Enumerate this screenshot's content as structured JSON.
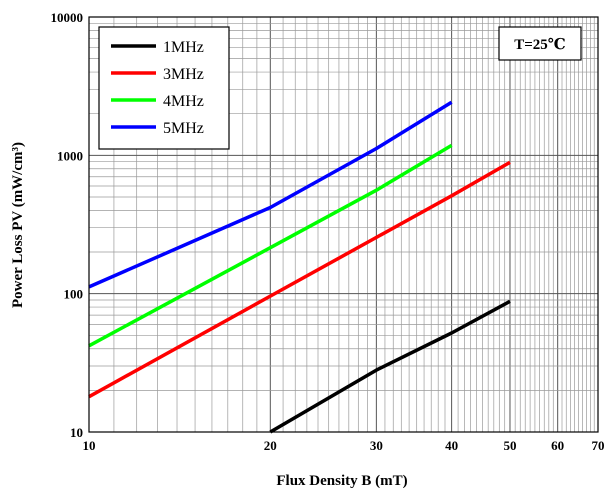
{
  "chart_data": {
    "type": "line",
    "xlabel": "Flux Density B (mT)",
    "ylabel": "Power Loss PV (mW/cm³)",
    "x_scale": "log",
    "y_scale": "log",
    "xlim": [
      10,
      70
    ],
    "ylim": [
      10,
      10000
    ],
    "x_ticks": [
      10,
      20,
      30,
      40,
      50,
      60,
      70
    ],
    "x_tick_labels": [
      "10",
      "20",
      "30",
      "40",
      "50",
      "60",
      "70"
    ],
    "y_ticks": [
      10,
      100,
      1000,
      10000
    ],
    "y_tick_labels": [
      "10",
      "100",
      "1000",
      "10000"
    ],
    "grid": true,
    "legend_position": "top-left",
    "annotation": "T=25℃",
    "series": [
      {
        "name": "1MHz",
        "color": "#000000",
        "x": [
          20,
          30,
          40,
          50
        ],
        "y": [
          10,
          28,
          52,
          88
        ]
      },
      {
        "name": "3MHz",
        "color": "#ff0000",
        "x": [
          10,
          20,
          30,
          40,
          50
        ],
        "y": [
          18,
          96,
          255,
          510,
          890
        ]
      },
      {
        "name": "4MHz",
        "color": "#00ff00",
        "x": [
          10,
          20,
          30,
          40
        ],
        "y": [
          42,
          215,
          560,
          1180
        ]
      },
      {
        "name": "5MHz",
        "color": "#0000ff",
        "x": [
          10,
          20,
          30,
          40
        ],
        "y": [
          112,
          420,
          1120,
          2420
        ]
      }
    ]
  }
}
